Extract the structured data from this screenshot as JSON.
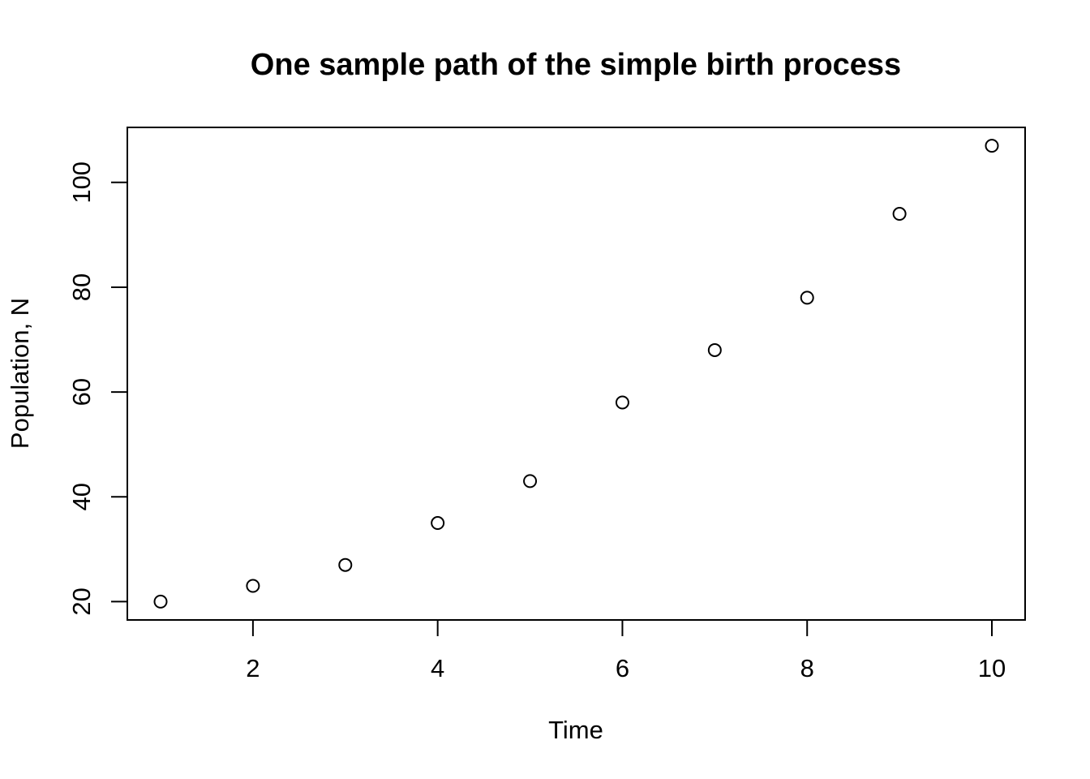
{
  "chart_data": {
    "type": "scatter",
    "title": "One sample path of the simple birth process",
    "xlabel": "Time",
    "ylabel": "Population, N",
    "x": [
      1,
      2,
      3,
      4,
      5,
      6,
      7,
      8,
      9,
      10
    ],
    "y": [
      20,
      23,
      27,
      35,
      43,
      58,
      68,
      78,
      94,
      107
    ],
    "xlim": [
      0.64,
      10.36
    ],
    "ylim": [
      16.5,
      110.5
    ],
    "xticks": [
      2,
      4,
      6,
      8,
      10
    ],
    "yticks": [
      20,
      40,
      60,
      80,
      100
    ],
    "marker": "open-circle",
    "grid": false,
    "colors": {
      "points": "#000000",
      "frame": "#000000",
      "background": "#ffffff"
    }
  }
}
